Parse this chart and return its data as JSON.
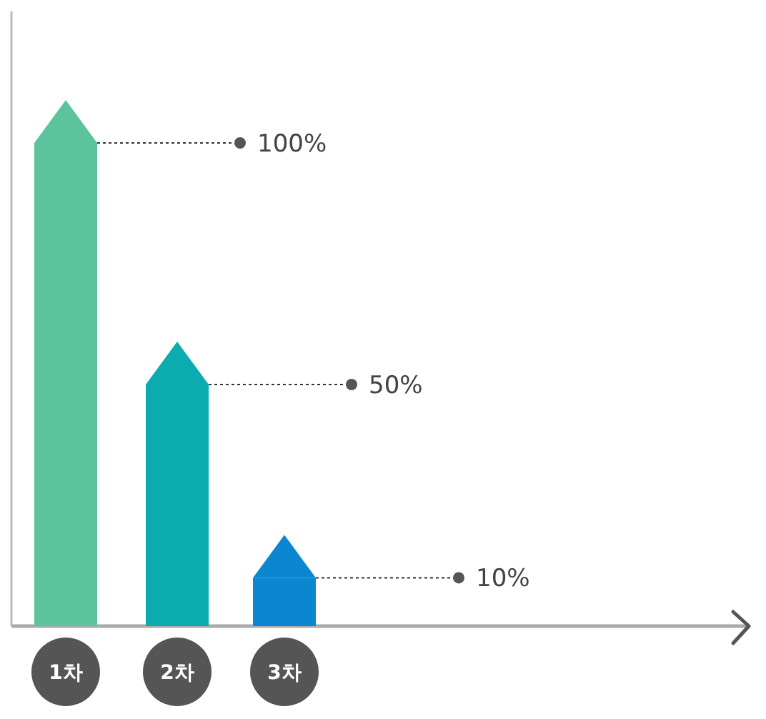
{
  "chart_data": {
    "type": "bar",
    "categories": [
      "1차",
      "2차",
      "3차"
    ],
    "values": [
      100,
      50,
      10
    ],
    "colors": [
      "#5cc49c",
      "#0cabb0",
      "#0b87d2"
    ],
    "value_labels": [
      "100%",
      "50%",
      "10%"
    ]
  }
}
